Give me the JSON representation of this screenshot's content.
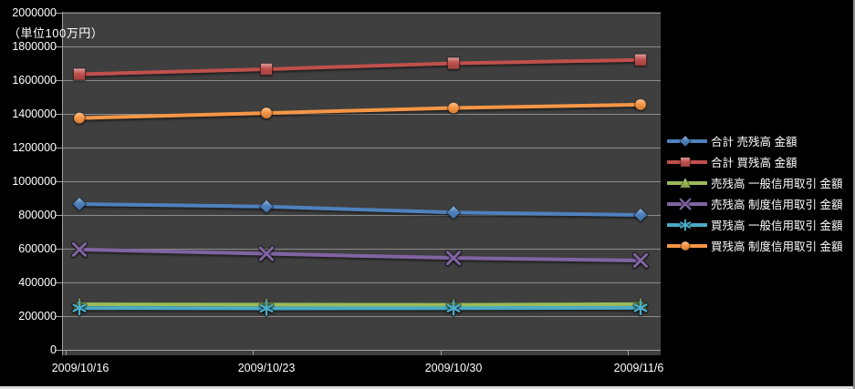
{
  "axis_note": "（単位100万円）",
  "chart_data": {
    "type": "line",
    "title": "",
    "x": [
      "2009/10/16",
      "2009/10/23",
      "2009/10/30",
      "2009/11/6"
    ],
    "series": [
      {
        "name": "合計 売残高 金額",
        "color": "#4F81BD",
        "marker": "diamond",
        "values": [
          865000,
          850000,
          815000,
          800000
        ]
      },
      {
        "name": "合計 買残高 金額",
        "color": "#C0504D",
        "marker": "square",
        "values": [
          1635000,
          1665000,
          1700000,
          1720000
        ]
      },
      {
        "name": "売残高 一般信用取引 金額",
        "color": "#9BBB59",
        "marker": "triangle",
        "values": [
          270000,
          268000,
          267000,
          271000
        ]
      },
      {
        "name": "売残高 制度信用取引 金額",
        "color": "#8064A2",
        "marker": "x",
        "values": [
          595000,
          570000,
          545000,
          530000
        ]
      },
      {
        "name": "買残高 一般信用取引 金額",
        "color": "#4BACC6",
        "marker": "asterisk",
        "values": [
          248000,
          246000,
          247000,
          249000
        ]
      },
      {
        "name": "買残高 制度信用取引 金額",
        "color": "#F79646",
        "marker": "circle",
        "values": [
          1375000,
          1405000,
          1435000,
          1455000
        ]
      }
    ],
    "ylim": [
      0,
      2000000
    ],
    "ytick_step": 200000,
    "y_tick_labels": [
      "0",
      "200000",
      "400000",
      "600000",
      "800000",
      "1000000",
      "1200000",
      "1400000",
      "1600000",
      "1800000",
      "2000000"
    ],
    "grid": true,
    "legend_position": "right",
    "colors": {
      "page_background": "#000000",
      "plot_background": "#3F3F3F",
      "gridline": "#8C8C8C",
      "axis_line": "#A0A0A0",
      "text": "#FFFFFF"
    }
  }
}
